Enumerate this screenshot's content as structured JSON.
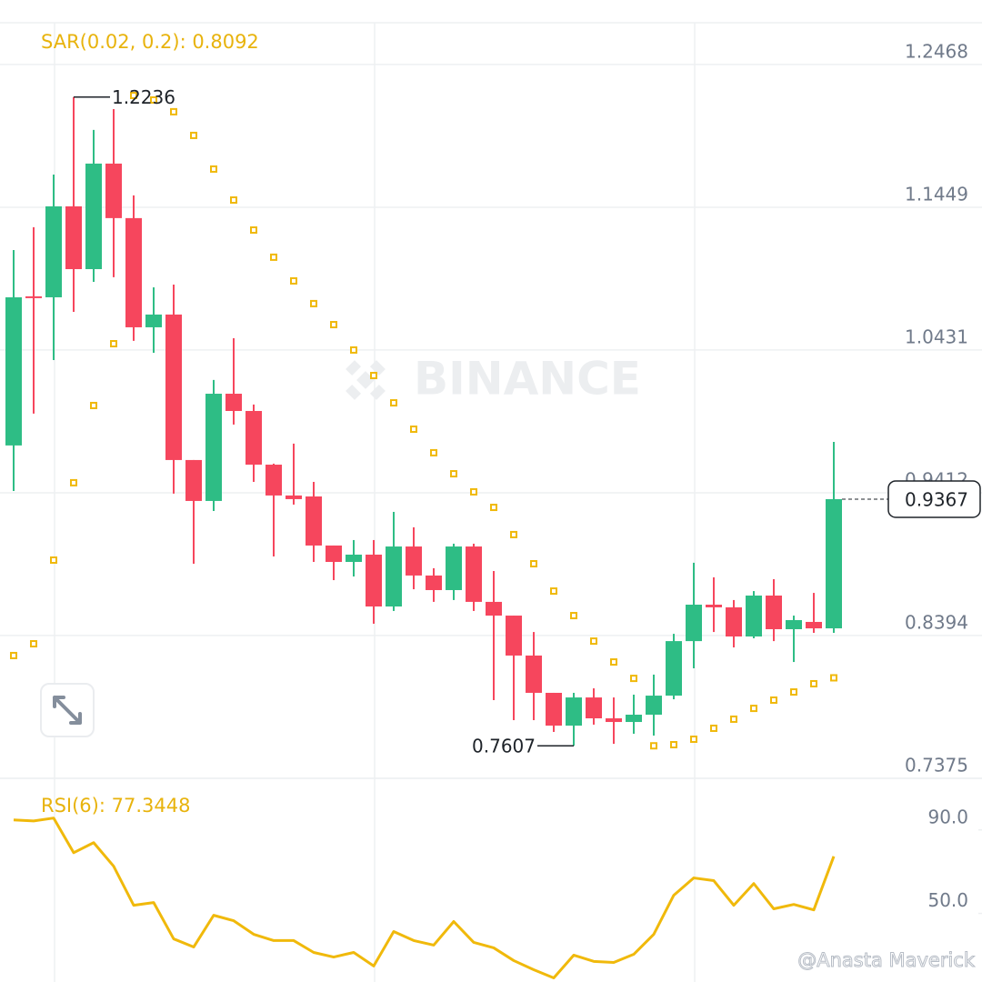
{
  "watermark": "BINANCE",
  "credit": "@Anasta Maverick",
  "chart_data": [
    {
      "type": "candlestick",
      "up_color": "#2ebd85",
      "down_color": "#f6465d",
      "open": [
        0.975,
        1.0814,
        1.0807,
        1.1456,
        1.1008,
        1.1761,
        1.1372,
        1.0593,
        1.0684,
        0.9646,
        0.9354,
        1.0119,
        0.9996,
        0.9613,
        0.9393,
        0.9386,
        0.9036,
        0.8919,
        0.8971,
        0.8601,
        0.9029,
        0.8822,
        0.8718,
        0.9029,
        0.8634,
        0.8536,
        0.8251,
        0.7985,
        0.7751,
        0.7952,
        0.7803,
        0.7777,
        0.7829,
        0.7965,
        0.8354,
        0.8614,
        0.8595,
        0.8387,
        0.8679,
        0.8439,
        0.8491,
        0.8445
      ],
      "high": [
        1.1144,
        1.1307,
        1.1683,
        1.2236,
        1.2001,
        1.215,
        1.1534,
        1.0878,
        1.0898,
        0.9646,
        1.0217,
        1.0515,
        1.0042,
        0.962,
        0.9763,
        0.949,
        0.9036,
        0.9075,
        0.9075,
        0.9276,
        0.9166,
        0.8874,
        0.9049,
        0.9049,
        0.8854,
        0.8536,
        0.8419,
        0.7985,
        0.7985,
        0.8017,
        0.7952,
        0.7972,
        0.8115,
        0.8406,
        0.8913,
        0.8809,
        0.8647,
        0.8711,
        0.8796,
        0.8536,
        0.8698,
        0.9775
      ],
      "low": [
        0.9425,
        0.9977,
        1.0359,
        1.0703,
        1.0917,
        1.095,
        1.0496,
        1.0411,
        0.9406,
        0.8906,
        0.9282,
        0.9899,
        0.949,
        0.8958,
        0.9328,
        0.8919,
        0.8789,
        0.8815,
        0.8478,
        0.8569,
        0.8724,
        0.8634,
        0.8647,
        0.8569,
        0.7933,
        0.779,
        0.779,
        0.7706,
        0.7607,
        0.7758,
        0.7621,
        0.7693,
        0.768,
        0.7939,
        0.816,
        0.8419,
        0.8309,
        0.8374,
        0.8354,
        0.8205,
        0.8413,
        0.8413
      ],
      "close": [
        1.0807,
        1.0801,
        1.1456,
        1.1008,
        1.1761,
        1.1372,
        1.0593,
        1.0684,
        0.9646,
        0.9354,
        1.0119,
        0.9996,
        0.9613,
        0.9393,
        0.9367,
        0.9036,
        0.8919,
        0.8971,
        0.8601,
        0.9029,
        0.8822,
        0.8718,
        0.9029,
        0.8634,
        0.8536,
        0.8251,
        0.7985,
        0.7751,
        0.7952,
        0.7803,
        0.7777,
        0.7829,
        0.7965,
        0.8354,
        0.8614,
        0.8595,
        0.8387,
        0.8679,
        0.8439,
        0.8504,
        0.8445,
        0.9367
      ],
      "series": [
        {
          "name": "SAR(0.02, 0.2): 0.8092",
          "color": "#f0b90b",
          "values": [
            0.8251,
            0.8335,
            0.8932,
            0.9484,
            1.0035,
            1.0476,
            1.2247,
            1.2215,
            1.2131,
            1.1962,
            1.1722,
            1.1501,
            1.1287,
            1.1093,
            1.0924,
            1.0762,
            1.0612,
            1.0431,
            1.0249,
            1.0054,
            0.9866,
            0.9698,
            0.9548,
            0.9419,
            0.9308,
            0.9114,
            0.8906,
            0.8711,
            0.8536,
            0.8354,
            0.8205,
            0.8088,
            0.7607,
            0.7615,
            0.7654,
            0.7732,
            0.7797,
            0.7874,
            0.7933,
            0.7991,
            0.805,
            0.8092
          ]
        }
      ],
      "ylim": [
        0.7375,
        1.2766
      ],
      "yticks": [
        1.2468,
        1.1449,
        1.0431,
        0.9412,
        0.8394,
        0.7375
      ],
      "grid": true
    },
    {
      "type": "line",
      "series": [
        {
          "name": "RSI(6): 77.3448",
          "color": "#f0b90b",
          "values": [
            94.8,
            94.3,
            95.7,
            79.1,
            83.9,
            72.6,
            53.9,
            55.2,
            37.8,
            33.9,
            49.1,
            46.5,
            40.0,
            37.0,
            37.0,
            31.3,
            29.1,
            31.3,
            24.8,
            41.3,
            37.0,
            34.8,
            46.1,
            36.1,
            33.5,
            27.4,
            23.0,
            19.1,
            30.0,
            27.0,
            26.5,
            30.4,
            40.0,
            58.7,
            67.0,
            65.7,
            53.9,
            64.3,
            52.2,
            54.3,
            51.7,
            77.3448
          ]
        }
      ],
      "ylim": [
        18,
        113
      ],
      "yticks": [
        {
          "value": 90,
          "label": "90.0"
        },
        {
          "value": 50,
          "label": "50.0"
        }
      ],
      "grid": false
    }
  ]
}
